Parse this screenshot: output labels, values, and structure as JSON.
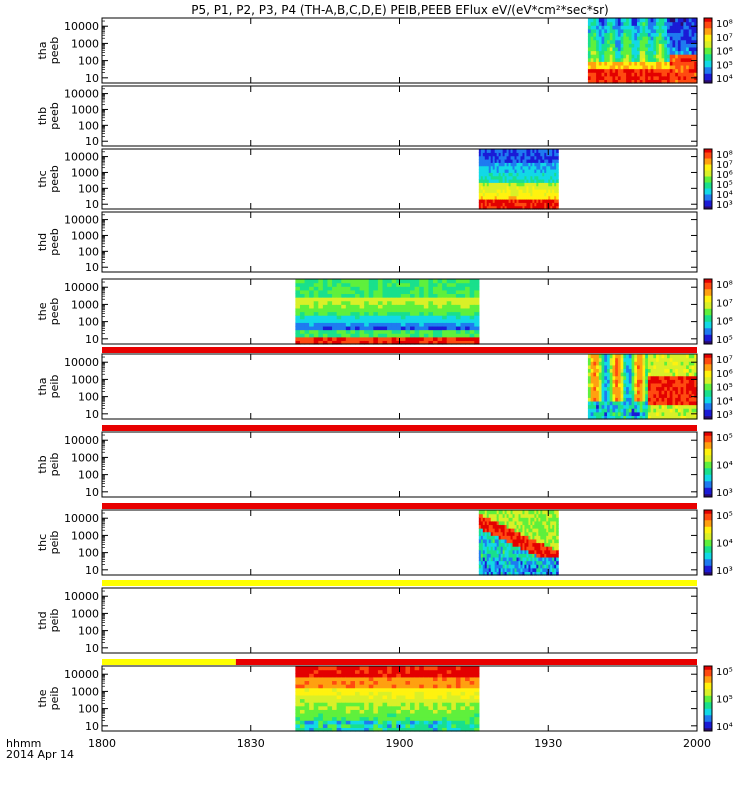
{
  "title": "P5, P1, P2, P3, P4 (TH-A,B,C,D,E) PEIB,PEEB EFlux eV/(eV*cm²*sec*sr)",
  "x_axis": {
    "corner_label_1": "hhmm",
    "corner_label_2": "2014 Apr 14",
    "tick_labels": [
      "1800",
      "1830",
      "1900",
      "1930",
      "2000"
    ]
  },
  "colors": {
    "cmap": [
      "#2b0a70",
      "#1b1bd6",
      "#1f7bf0",
      "#12d9e6",
      "#19e08c",
      "#5ff03c",
      "#d9f028",
      "#fff20f",
      "#ffa010",
      "#ff4a10",
      "#e30000"
    ],
    "bar_red": "#e80000",
    "bar_yellow": "#ffff00"
  },
  "chart_data": {
    "type": "heatmap",
    "x_range_minutes": [
      0,
      120
    ],
    "y_scale": "log",
    "y_range": [
      5,
      30000
    ],
    "y_tick_labels": [
      "10",
      "100",
      "1000",
      "10000"
    ],
    "panels": [
      {
        "label1": "tha",
        "label2": "peeb",
        "coverage": [
          [
            98,
            120
          ]
        ],
        "variant": "peeb_a",
        "colorbar_ticks": [
          "10⁸",
          "10⁷",
          "10⁶",
          "10⁵",
          "10⁴"
        ]
      },
      {
        "label1": "thb",
        "label2": "peeb",
        "coverage": [],
        "variant": "none",
        "colorbar_ticks": []
      },
      {
        "label1": "thc",
        "label2": "peeb",
        "coverage": [
          [
            76,
            92
          ]
        ],
        "variant": "peeb_c",
        "colorbar_ticks": [
          "10⁸",
          "10⁷",
          "10⁶",
          "10⁵",
          "10⁴",
          "10³"
        ]
      },
      {
        "label1": "thd",
        "label2": "peeb",
        "coverage": [],
        "variant": "none",
        "colorbar_ticks": []
      },
      {
        "label1": "the",
        "label2": "peeb",
        "coverage": [
          [
            39,
            76
          ]
        ],
        "variant": "peeb_e",
        "colorbar_ticks": [
          "10⁸",
          "10⁷",
          "10⁶",
          "10⁵"
        ]
      },
      {
        "label1": "tha",
        "label2": "peib",
        "coverage": [
          [
            98,
            120
          ]
        ],
        "variant": "peib_a",
        "colorbar_ticks": [
          "10⁷",
          "10⁶",
          "10⁵",
          "10⁴",
          "10³"
        ]
      },
      {
        "label1": "thb",
        "label2": "peib",
        "coverage": [],
        "variant": "none",
        "colorbar_ticks": [
          "10⁵",
          "10⁴",
          "10³"
        ]
      },
      {
        "label1": "thc",
        "label2": "peib",
        "coverage": [
          [
            76,
            92
          ]
        ],
        "variant": "peib_c",
        "colorbar_ticks": [
          "10⁵",
          "10⁴",
          "10³"
        ]
      },
      {
        "label1": "thd",
        "label2": "peib",
        "coverage": [],
        "variant": "none",
        "colorbar_ticks": []
      },
      {
        "label1": "the",
        "label2": "peib",
        "coverage": [
          [
            39,
            76
          ]
        ],
        "variant": "peib_e",
        "colorbar_ticks": [
          "10⁵",
          "10⁵",
          "10⁴"
        ]
      }
    ],
    "mode_bars": [
      {
        "after_panel": 5,
        "segments": [
          {
            "from": 0,
            "to": 120,
            "color": "red"
          }
        ]
      },
      {
        "after_panel": 6,
        "segments": [
          {
            "from": 0,
            "to": 120,
            "color": "red"
          }
        ]
      },
      {
        "after_panel": 7,
        "segments": [
          {
            "from": 0,
            "to": 120,
            "color": "red"
          }
        ]
      },
      {
        "after_panel": 8,
        "segments": [
          {
            "from": 0,
            "to": 120,
            "color": "yellow"
          }
        ]
      },
      {
        "after_panel": 9,
        "segments": [
          {
            "from": 0,
            "to": 27,
            "color": "yellow"
          },
          {
            "from": 27,
            "to": 120,
            "color": "red"
          }
        ]
      }
    ]
  }
}
